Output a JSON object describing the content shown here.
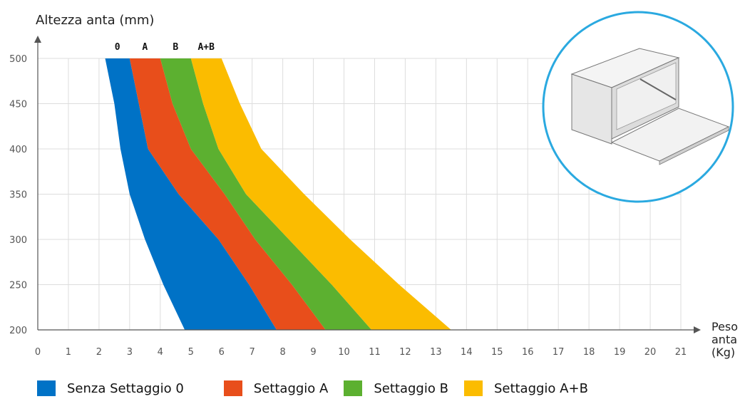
{
  "chart_data": {
    "type": "area",
    "ylabel": "Altezza anta (mm)",
    "xlabel": [
      "Peso",
      "anta",
      "(Kg)"
    ],
    "xlim": [
      0,
      21
    ],
    "ylim": [
      200,
      500
    ],
    "x_ticks": [
      "0",
      "1",
      "2",
      "3",
      "4",
      "5",
      "6",
      "7",
      "8",
      "9",
      "10",
      "11",
      "12",
      "13",
      "14",
      "15",
      "16",
      "17",
      "18",
      "19",
      "20",
      "21"
    ],
    "y_ticks": [
      "200",
      "250",
      "300",
      "350",
      "400",
      "450",
      "500"
    ],
    "grid": true,
    "band_labels": [
      "0",
      "A",
      "B",
      "A+B"
    ],
    "y": [
      500,
      450,
      400,
      350,
      300,
      250,
      200
    ],
    "boundaries": [
      [
        2.2,
        2.5,
        2.7,
        3.0,
        3.5,
        4.1,
        4.8
      ],
      [
        3.0,
        3.3,
        3.6,
        4.6,
        5.9,
        6.9,
        7.8
      ],
      [
        4.0,
        4.4,
        5.0,
        6.1,
        7.1,
        8.3,
        9.4
      ],
      [
        5.0,
        5.4,
        5.9,
        6.8,
        8.2,
        9.6,
        10.9
      ],
      [
        6.0,
        6.6,
        7.3,
        8.7,
        10.2,
        11.8,
        13.5
      ]
    ],
    "series": [
      {
        "name": "Senza Settaggio 0",
        "color": "#0072c6"
      },
      {
        "name": "Settaggio A",
        "color": "#e84e1b"
      },
      {
        "name": "Settaggio B",
        "color": "#5cb030"
      },
      {
        "name": "Settaggio A+B",
        "color": "#fbbc00"
      }
    ]
  }
}
